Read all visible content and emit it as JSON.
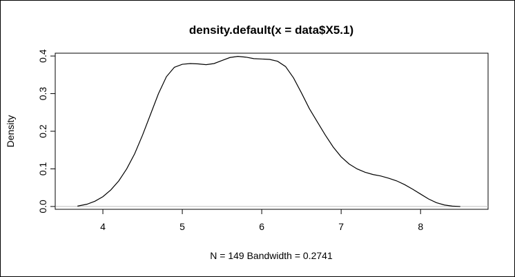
{
  "chart_data": {
    "type": "line",
    "title": "density.default(x = data$X5.1)",
    "xlabel": "N = 149   Bandwidth = 0.2741",
    "ylabel": "Density",
    "xlim": [
      3.4,
      8.85
    ],
    "ylim": [
      -0.0075,
      0.4075
    ],
    "x_ticks": [
      4,
      5,
      6,
      7,
      8
    ],
    "x_tick_labels": [
      "4",
      "5",
      "6",
      "7",
      "8"
    ],
    "y_ticks": [
      0.0,
      0.1,
      0.2,
      0.3,
      0.4
    ],
    "y_tick_labels": [
      "0.0",
      "0.1",
      "0.2",
      "0.3",
      "0.4"
    ],
    "grid": false,
    "legend": "none",
    "baseline_y": 0,
    "colors": {
      "line": "#000000",
      "baseline": "#bebebe"
    },
    "series": [
      {
        "x": [
          3.68,
          3.8,
          3.9,
          4.0,
          4.1,
          4.2,
          4.3,
          4.4,
          4.5,
          4.6,
          4.7,
          4.8,
          4.9,
          5.0,
          5.1,
          5.2,
          5.3,
          5.4,
          5.5,
          5.6,
          5.7,
          5.8,
          5.9,
          6.0,
          6.1,
          6.2,
          6.3,
          6.4,
          6.5,
          6.6,
          6.7,
          6.8,
          6.9,
          7.0,
          7.1,
          7.2,
          7.3,
          7.4,
          7.5,
          7.6,
          7.7,
          7.8,
          7.9,
          8.0,
          8.1,
          8.2,
          8.3,
          8.4,
          8.5
        ],
        "y": [
          0.001,
          0.006,
          0.014,
          0.026,
          0.044,
          0.068,
          0.1,
          0.14,
          0.19,
          0.245,
          0.3,
          0.345,
          0.37,
          0.378,
          0.38,
          0.379,
          0.377,
          0.38,
          0.388,
          0.396,
          0.399,
          0.397,
          0.393,
          0.392,
          0.391,
          0.386,
          0.372,
          0.342,
          0.302,
          0.26,
          0.225,
          0.19,
          0.158,
          0.132,
          0.113,
          0.1,
          0.091,
          0.085,
          0.081,
          0.075,
          0.068,
          0.058,
          0.046,
          0.033,
          0.02,
          0.01,
          0.004,
          0.001,
          0.0
        ]
      }
    ]
  }
}
